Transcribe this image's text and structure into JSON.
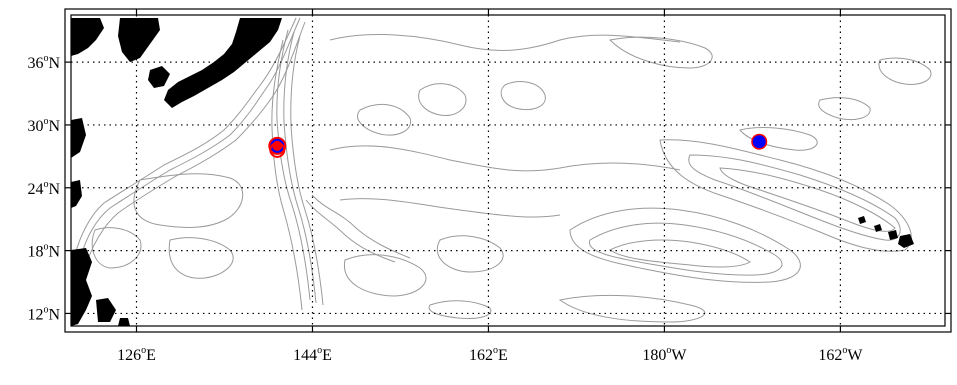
{
  "map": {
    "lat_labels": [
      {
        "deg": "36",
        "hem": "N",
        "value": 36
      },
      {
        "deg": "30",
        "hem": "N",
        "value": 30
      },
      {
        "deg": "24",
        "hem": "N",
        "value": 24
      },
      {
        "deg": "18",
        "hem": "N",
        "value": 18
      },
      {
        "deg": "12",
        "hem": "N",
        "value": 12
      }
    ],
    "lon_labels": [
      {
        "deg": "126",
        "hem": "E",
        "value": 126
      },
      {
        "deg": "144",
        "hem": "E",
        "value": 144
      },
      {
        "deg": "162",
        "hem": "E",
        "value": 162
      },
      {
        "deg": "180",
        "hem": "W",
        "value": 180
      },
      {
        "deg": "162",
        "hem": "W",
        "value": 198
      }
    ],
    "degree_symbol": "o",
    "extent": {
      "lon_min": 119.3,
      "lon_max": 208.7,
      "lat_min": 10.8,
      "lat_max": 40.5
    },
    "gridlines": "dotted",
    "markers": [
      {
        "name": "marker-red-ring-west",
        "lon": 140.4,
        "lat": 28.0,
        "fill": "#0000ff",
        "ring": "#ff0000",
        "style": "red-ring"
      },
      {
        "name": "marker-blue-east",
        "lon": 189.7,
        "lat": 28.4,
        "fill": "#0000ff",
        "ring": "#ff0000",
        "style": "blue-dot"
      }
    ],
    "colors": {
      "land": "#000000",
      "contour": "#9a9a9a",
      "frame": "#000000",
      "grid": "#000000",
      "marker_fill": "#0000ff",
      "marker_ring": "#ff0000"
    }
  }
}
